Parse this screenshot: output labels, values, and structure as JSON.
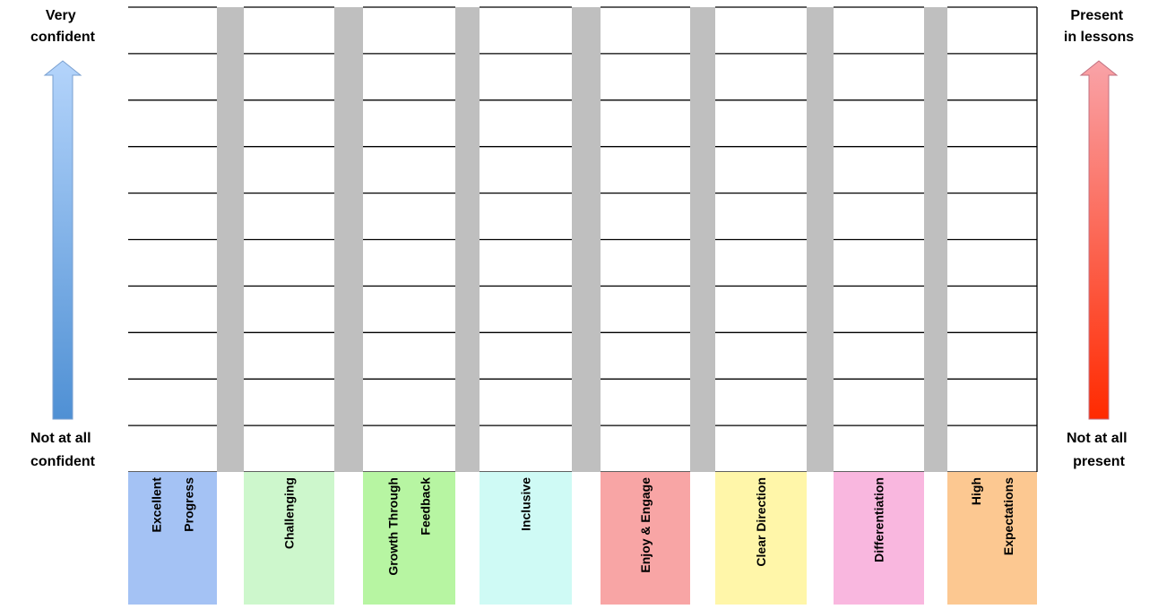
{
  "left_scale": {
    "top": [
      "Very",
      "confident"
    ],
    "bottom": [
      "Not at all",
      "confident"
    ]
  },
  "right_scale": {
    "top": [
      "Present",
      "in lessons"
    ],
    "bottom": [
      "Not at all",
      "present"
    ]
  },
  "columns": [
    {
      "label": [
        "Excellent",
        "Progress"
      ],
      "color": "#a4c2f4"
    },
    {
      "label": [
        "Challenging"
      ],
      "color": "#cdf7cc"
    },
    {
      "label": [
        "Growth Through",
        "Feedback"
      ],
      "color": "#b7f5a2"
    },
    {
      "label": [
        "Inclusive"
      ],
      "color": "#cffaf5"
    },
    {
      "label": [
        "Enjoy & Engage"
      ],
      "color": "#f8a5a5"
    },
    {
      "label": [
        "Clear Direction"
      ],
      "color": "#fff6a9"
    },
    {
      "label": [
        "Differentiation"
      ],
      "color": "#f9b7df"
    },
    {
      "label": [
        "High",
        "Expectations"
      ],
      "color": "#fcc891"
    }
  ]
}
